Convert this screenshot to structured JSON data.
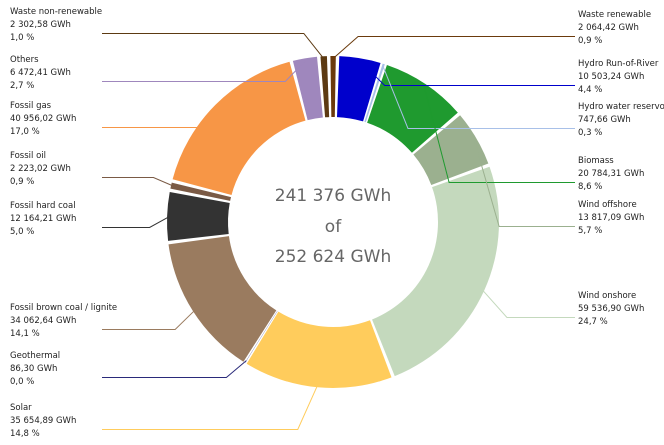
{
  "chart_data": {
    "type": "pie",
    "donut": true,
    "center_text": [
      "241 376 GWh",
      "of",
      "252 624 GWh"
    ],
    "slices": [
      {
        "name": "Waste renewable",
        "value_label": "2 064,42 GWh",
        "percent_label": "0,9 %",
        "value": 2064.42,
        "color": "#6b3a0c"
      },
      {
        "name": "Hydro Run-of-River",
        "value_label": "10 503,24 GWh",
        "percent_label": "4,4 %",
        "value": 10503.24,
        "color": "#0000cc"
      },
      {
        "name": "Hydro water reservoir",
        "value_label": "747,66 GWh",
        "percent_label": "0,3 %",
        "value": 747.66,
        "color": "#a8c0e8"
      },
      {
        "name": "Biomass",
        "value_label": "20 784,31 GWh",
        "percent_label": "8,6 %",
        "value": 20784.31,
        "color": "#1f9a2f"
      },
      {
        "name": "Wind offshore",
        "value_label": "13 817,09 GWh",
        "percent_label": "5,7 %",
        "value": 13817.09,
        "color": "#9bb08f"
      },
      {
        "name": "Wind onshore",
        "value_label": "59 536,90 GWh",
        "percent_label": "24,7 %",
        "value": 59536.9,
        "color": "#c4d9bd"
      },
      {
        "name": "Solar",
        "value_label": "35 654,89 GWh",
        "percent_label": "14,8 %",
        "value": 35654.89,
        "color": "#ffcc5c"
      },
      {
        "name": "Geothermal",
        "value_label": "86,30 GWh",
        "percent_label": "0,0 %",
        "value": 86.3,
        "color": "#2a2a7a"
      },
      {
        "name": "Fossil brown coal / lignite",
        "value_label": "34 062,64 GWh",
        "percent_label": "14,1 %",
        "value": 34062.64,
        "color": "#9a7b5f"
      },
      {
        "name": "Fossil hard coal",
        "value_label": "12 164,21 GWh",
        "percent_label": "5,0 %",
        "value": 12164.21,
        "color": "#333333"
      },
      {
        "name": "Fossil oil",
        "value_label": "2 223,02 GWh",
        "percent_label": "0,9 %",
        "value": 2223.02,
        "color": "#7a5a45"
      },
      {
        "name": "Fossil gas",
        "value_label": "40 956,02 GWh",
        "percent_label": "17,0 %",
        "value": 40956.02,
        "color": "#f79646"
      },
      {
        "name": "Others",
        "value_label": "6 472,41 GWh",
        "percent_label": "2,7 %",
        "value": 6472.41,
        "color": "#9f87bd"
      },
      {
        "name": "Waste non-renewable",
        "value_label": "2 302,58 GWh",
        "percent_label": "1,0 %",
        "value": 2302.58,
        "color": "#5c3a12"
      }
    ]
  }
}
